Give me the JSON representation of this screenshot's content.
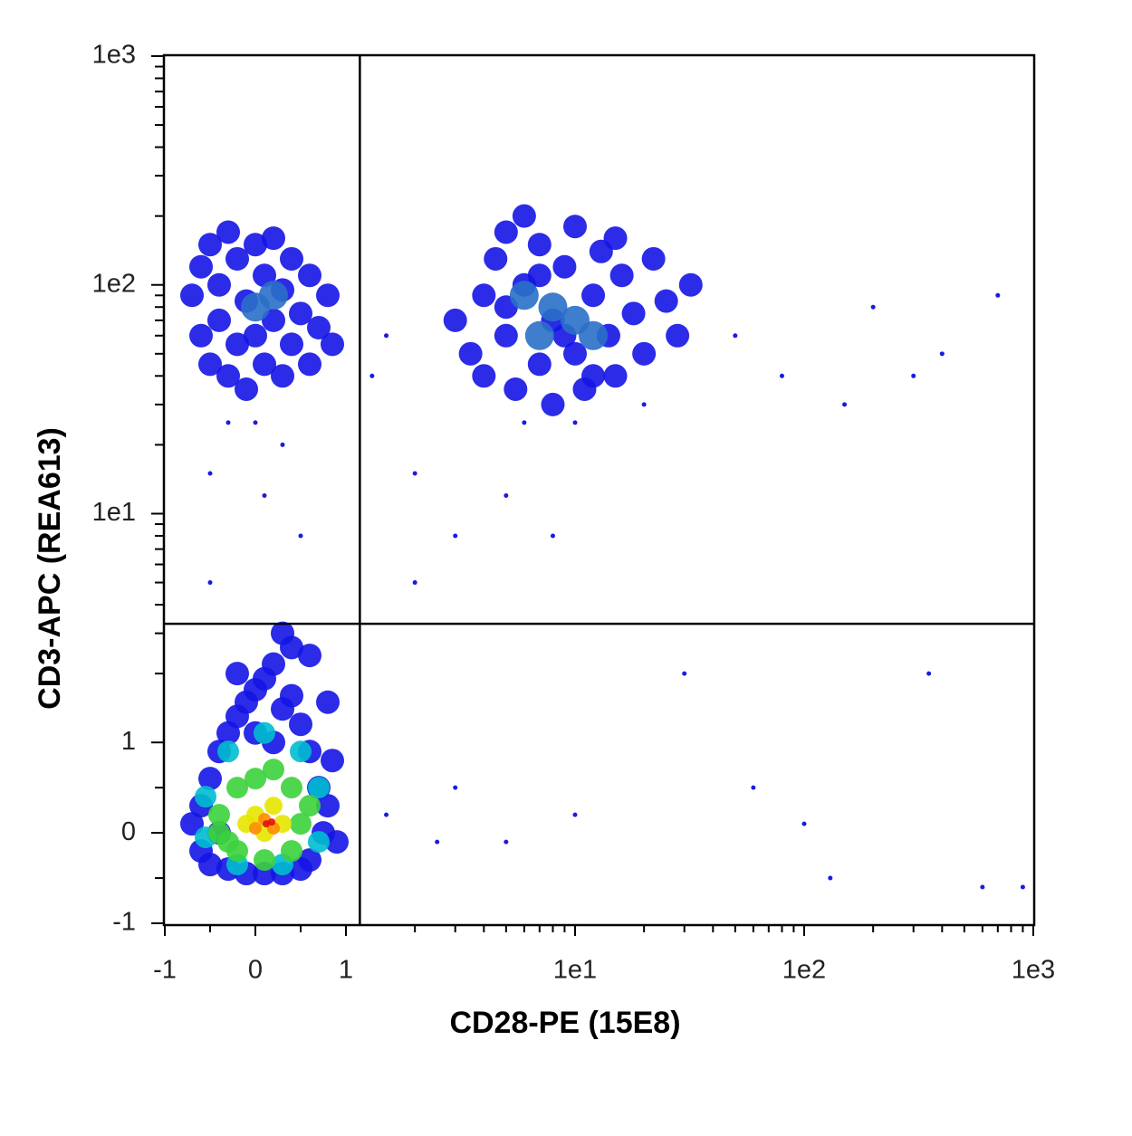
{
  "chart_data": {
    "type": "scatter",
    "x_label": "CD28-PE (15E8)",
    "y_label": "CD3-APC (REA613)",
    "scale": "biexponential",
    "xlim": [
      -1,
      1000
    ],
    "ylim": [
      -1,
      1000
    ],
    "xticks": [
      -1,
      0,
      1,
      {
        "value": 10,
        "label": "1e1"
      },
      {
        "value": 100,
        "label": "1e2"
      },
      {
        "value": 1000,
        "label": "1e3"
      }
    ],
    "yticks": [
      -1,
      0,
      1,
      {
        "value": 10,
        "label": "1e1"
      },
      {
        "value": 100,
        "label": "1e2"
      },
      {
        "value": 1000,
        "label": "1e3"
      }
    ],
    "minor_ticks": [
      -0.5,
      0.5,
      2,
      3,
      4,
      5,
      6,
      7,
      8,
      9,
      20,
      30,
      40,
      50,
      60,
      70,
      80,
      90,
      200,
      300,
      400,
      500,
      600,
      700,
      800,
      900
    ],
    "gates": {
      "x": 1.15,
      "y": 3.3
    },
    "series": [
      {
        "color": "#1414e6",
        "x": [
          -0.7,
          -0.6,
          -0.6,
          -0.5,
          -0.5,
          -0.4,
          -0.4,
          -0.3,
          -0.3,
          -0.2,
          -0.1,
          -0.1,
          0,
          0.1,
          0.1,
          0.2,
          0.3,
          0.3,
          0.4,
          0.5,
          0.5,
          0.6,
          0.6,
          0.7,
          0.75,
          0.8,
          0.85,
          0.9,
          0.0,
          0.2,
          0.4,
          0.3,
          -0.2,
          0.6,
          0.8,
          -0.7,
          -0.6,
          -0.6,
          -0.5,
          -0.5,
          -0.4,
          -0.4,
          -0.3,
          -0.3,
          -0.2,
          -0.2,
          -0.1,
          -0.1,
          0,
          0,
          0.1,
          0.1,
          0.2,
          0.2,
          0.3,
          0.3,
          0.4,
          0.4,
          0.5,
          0.6,
          0.6,
          0.7,
          0.8,
          0.85,
          3,
          3.5,
          4,
          4,
          4.5,
          5,
          5,
          5.5,
          6,
          6,
          7,
          7,
          8,
          8,
          9,
          10,
          10,
          11,
          12,
          13,
          14,
          15,
          16,
          18,
          20,
          22,
          25,
          28,
          32,
          5,
          7,
          9,
          12,
          15
        ],
        "y": [
          0.1,
          -0.2,
          0.3,
          0.6,
          -0.35,
          0.9,
          0.0,
          1.1,
          -0.4,
          1.3,
          1.5,
          -0.45,
          1.7,
          1.9,
          -0.45,
          2.2,
          1.4,
          -0.45,
          1.6,
          1.2,
          -0.4,
          0.9,
          -0.3,
          0.5,
          0.0,
          0.3,
          0.8,
          -0.1,
          1.1,
          1.0,
          2.6,
          3.0,
          2.0,
          2.4,
          1.5,
          90,
          60,
          120,
          45,
          150,
          70,
          100,
          40,
          170,
          55,
          130,
          35,
          85,
          60,
          150,
          45,
          110,
          70,
          160,
          40,
          95,
          55,
          130,
          75,
          45,
          110,
          65,
          90,
          55,
          70,
          50,
          90,
          40,
          130,
          60,
          170,
          35,
          100,
          200,
          45,
          150,
          70,
          30,
          120,
          50,
          180,
          35,
          90,
          140,
          60,
          40,
          110,
          75,
          50,
          130,
          85,
          60,
          100,
          80,
          110,
          60,
          40,
          160
        ]
      },
      {
        "color": "#1a1ae0",
        "x": [
          0.0,
          0.3,
          -0.5,
          6,
          10,
          20,
          2,
          3,
          1.5,
          1.3,
          2,
          5,
          8,
          50,
          80,
          150,
          300,
          200,
          700,
          400,
          30,
          60,
          3,
          10,
          5,
          100,
          1.5,
          2.5,
          600,
          900,
          130,
          350,
          -0.5,
          0.5,
          0.1,
          -0.3
        ],
        "y": [
          25,
          20,
          15,
          25,
          25,
          30,
          15,
          8,
          60,
          40,
          5,
          12,
          8,
          60,
          40,
          30,
          40,
          80,
          90,
          50,
          2,
          0.5,
          0.5,
          0.2,
          -0.1,
          0.1,
          0.2,
          -0.1,
          -0.6,
          -0.6,
          -0.5,
          2,
          5,
          8,
          12,
          25
        ]
      },
      {
        "color": "#2a6fc8",
        "x": [
          6,
          8,
          7,
          10,
          12,
          0.0,
          0.2
        ],
        "y": [
          90,
          80,
          60,
          70,
          60,
          80,
          90
        ]
      },
      {
        "color": "#00bcd0",
        "x": [
          -0.55,
          -0.3,
          0.1,
          0.5,
          0.7,
          0.7,
          0.3,
          -0.2,
          -0.55
        ],
        "y": [
          0.4,
          0.9,
          1.1,
          0.9,
          0.5,
          -0.1,
          -0.35,
          -0.35,
          -0.05
        ]
      },
      {
        "color": "#3cd23c",
        "x": [
          -0.4,
          -0.3,
          -0.2,
          0,
          0.2,
          0.4,
          0.5,
          0.4,
          0.1,
          -0.2,
          0.6,
          -0.4
        ],
        "y": [
          0.2,
          -0.1,
          0.5,
          0.6,
          0.7,
          0.5,
          0.1,
          -0.2,
          -0.3,
          -0.2,
          0.3,
          0.0
        ]
      },
      {
        "color": "#e6e600",
        "x": [
          0.0,
          0.2,
          0.1,
          0.3,
          -0.1
        ],
        "y": [
          0.2,
          0.3,
          0.0,
          0.1,
          0.1
        ]
      },
      {
        "color": "#ff8c00",
        "x": [
          0.1,
          0.2,
          0.0
        ],
        "y": [
          0.15,
          0.05,
          0.05
        ]
      },
      {
        "color": "#e01010",
        "x": [
          0.12,
          0.18
        ],
        "y": [
          0.1,
          0.12
        ]
      }
    ]
  }
}
